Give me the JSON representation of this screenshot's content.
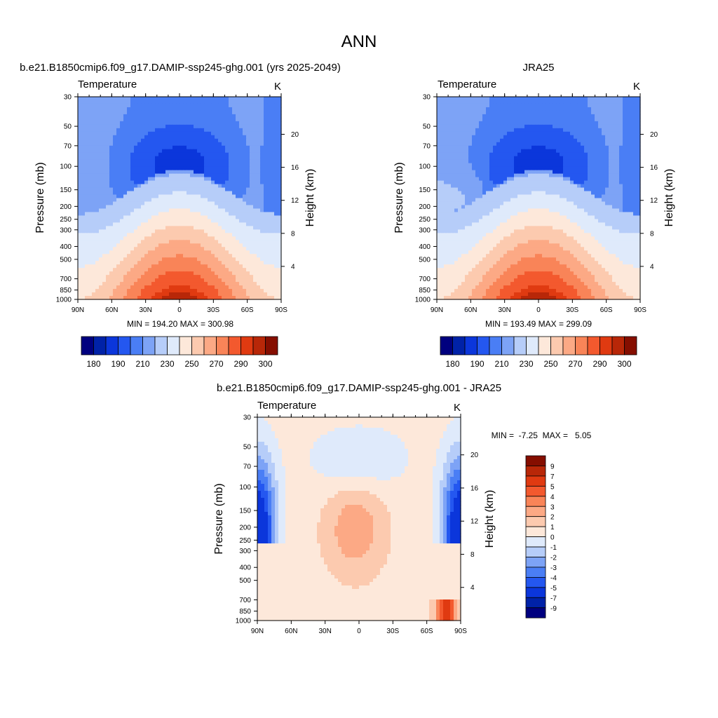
{
  "title": "ANN",
  "palette_temp": [
    "#00007f",
    "#0022a8",
    "#0b36db",
    "#2457f0",
    "#4a7ef5",
    "#7da3f6",
    "#b6cdf9",
    "#dfeafb",
    "#fde8da",
    "#fccaaf",
    "#fca985",
    "#f98458",
    "#f3592e",
    "#e03a11",
    "#b82708",
    "#850e00"
  ],
  "colorbar_temp_labels": [
    "180",
    "190",
    "210",
    "230",
    "250",
    "270",
    "290",
    "300"
  ],
  "diff_levels": [
    "9",
    "7",
    "5",
    "4",
    "3",
    "2",
    "1",
    "0",
    "-1",
    "-2",
    "-3",
    "-4",
    "-5",
    "-7",
    "-9"
  ],
  "palette_diff": [
    "#850e00",
    "#b82708",
    "#e03a11",
    "#f3592e",
    "#f98458",
    "#fca985",
    "#fccaaf",
    "#fde8da",
    "#dfeafb",
    "#b6cdf9",
    "#7da3f6",
    "#4a7ef5",
    "#2457f0",
    "#0b36db",
    "#0022a8",
    "#00007f"
  ],
  "panels": [
    {
      "name": "model",
      "header": "b.e21.B1850cmip6.f09_g17.DAMIP-ssp245-ghg.001 (yrs 2025-2049)",
      "left_string": "Temperature",
      "right_string": "K",
      "y_title": "Pressure (mb)",
      "y2_title": "Height (km)",
      "y_ticks": [
        "30",
        "50",
        "70",
        "100",
        "150",
        "200",
        "250",
        "300",
        "400",
        "500",
        "700",
        "850",
        "1000"
      ],
      "y2_ticks": [
        "20",
        "16",
        "12",
        "8",
        "4"
      ],
      "x_ticks": [
        "90N",
        "60N",
        "30N",
        "0",
        "30S",
        "60S",
        "90S"
      ],
      "minmax": "MIN = 194.20  MAX = 300.98",
      "min": 194.2,
      "max": 300.98
    },
    {
      "name": "obs",
      "header": "JRA25",
      "left_string": "Temperature",
      "right_string": "K",
      "y_title": "Pressure (mb)",
      "y2_title": "Height (km)",
      "y_ticks": [
        "30",
        "50",
        "70",
        "100",
        "150",
        "200",
        "250",
        "300",
        "400",
        "500",
        "700",
        "850",
        "1000"
      ],
      "y2_ticks": [
        "20",
        "16",
        "12",
        "8",
        "4"
      ],
      "x_ticks": [
        "90N",
        "60N",
        "30N",
        "0",
        "30S",
        "60S",
        "90S"
      ],
      "minmax": "MIN = 193.49  MAX = 299.09",
      "min": 193.49,
      "max": 299.09
    },
    {
      "name": "diff",
      "header": "b.e21.B1850cmip6.f09_g17.DAMIP-ssp245-ghg.001 - JRA25",
      "left_string": "Temperature",
      "right_string": "K",
      "y_title": "Pressure (mb)",
      "y2_title": "Height (km)",
      "y_ticks": [
        "30",
        "50",
        "70",
        "100",
        "150",
        "200",
        "250",
        "300",
        "400",
        "500",
        "700",
        "850",
        "1000"
      ],
      "y2_ticks": [
        "20",
        "16",
        "12",
        "8",
        "4"
      ],
      "x_ticks": [
        "90N",
        "60N",
        "30N",
        "0",
        "30S",
        "60S",
        "90S"
      ],
      "minmax": "MIN =  -7.25  MAX =   5.05",
      "min": -7.25,
      "max": 5.05
    }
  ],
  "chart_data": [
    {
      "type": "heatmap",
      "panel": "model",
      "x_axis": "latitude",
      "x": [
        "90N",
        "60N",
        "30N",
        "0",
        "30S",
        "60S",
        "90S"
      ],
      "y_axis": "pressure (mb), log scale, inverted",
      "y": [
        30,
        50,
        70,
        100,
        150,
        200,
        250,
        300,
        400,
        500,
        700,
        850,
        1000
      ],
      "y2": [
        20,
        16,
        12,
        8,
        4
      ],
      "levels": [
        180,
        190,
        210,
        230,
        250,
        270,
        290,
        300
      ],
      "min": 194.2,
      "max": 300.98
    },
    {
      "type": "heatmap",
      "panel": "obs",
      "x_axis": "latitude",
      "x": [
        "90N",
        "60N",
        "30N",
        "0",
        "30S",
        "60S",
        "90S"
      ],
      "y_axis": "pressure (mb), log scale, inverted",
      "y": [
        30,
        50,
        70,
        100,
        150,
        200,
        250,
        300,
        400,
        500,
        700,
        850,
        1000
      ],
      "y2": [
        20,
        16,
        12,
        8,
        4
      ],
      "levels": [
        180,
        190,
        210,
        230,
        250,
        270,
        290,
        300
      ],
      "min": 193.49,
      "max": 299.09
    },
    {
      "type": "heatmap",
      "panel": "diff",
      "x_axis": "latitude",
      "x": [
        "90N",
        "60N",
        "30N",
        "0",
        "30S",
        "60S",
        "90S"
      ],
      "y_axis": "pressure (mb), log scale, inverted",
      "y": [
        30,
        50,
        70,
        100,
        150,
        200,
        250,
        300,
        400,
        500,
        700,
        850,
        1000
      ],
      "y2": [
        20,
        16,
        12,
        8,
        4
      ],
      "levels": [
        9,
        7,
        5,
        4,
        3,
        2,
        1,
        0,
        -1,
        -2,
        -3,
        -4,
        -5,
        -7,
        -9
      ],
      "min": -7.25,
      "max": 5.05
    }
  ]
}
